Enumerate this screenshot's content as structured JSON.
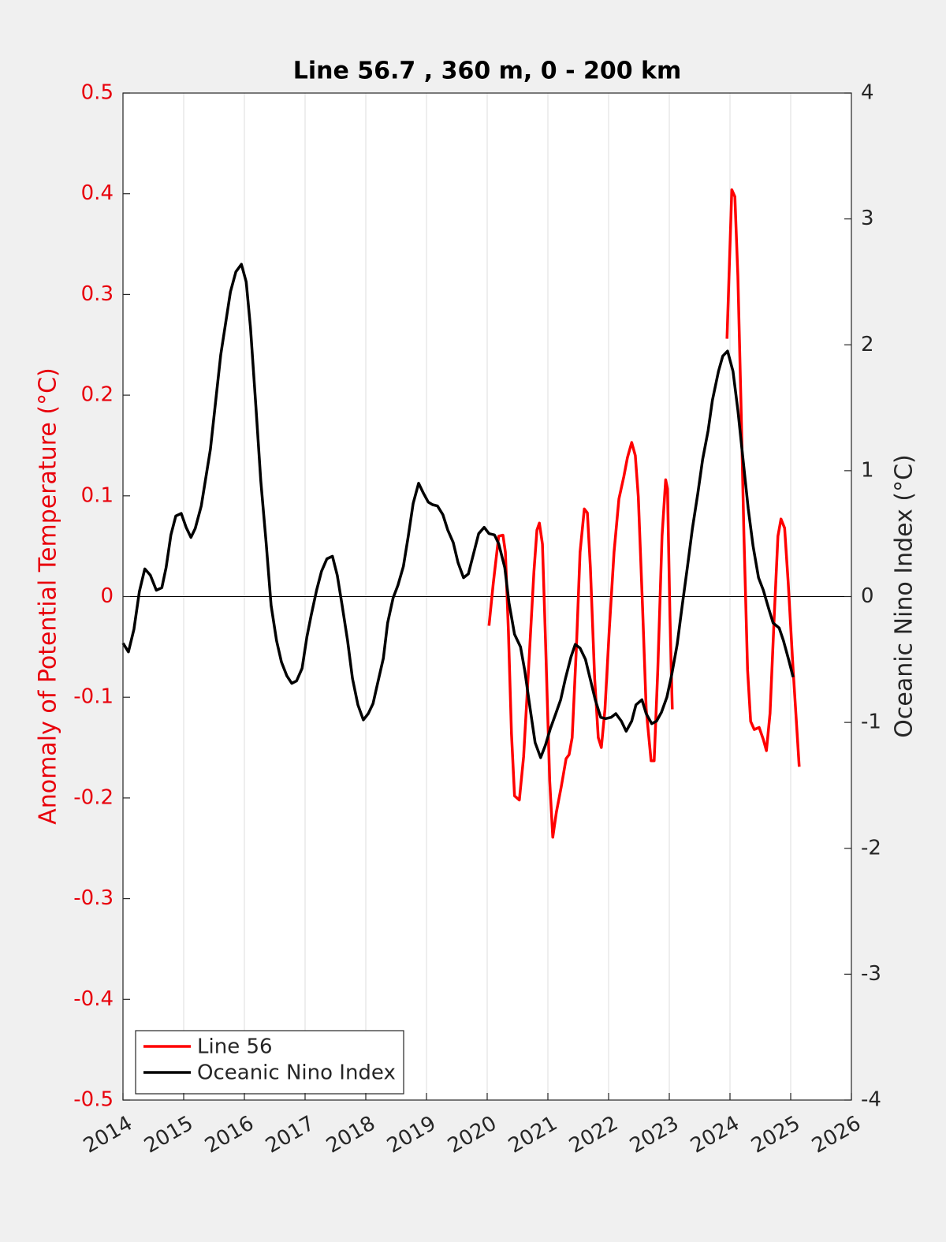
{
  "chart_data": {
    "type": "line",
    "title": "Line 56.7 , 360 m, 0 - 200 km",
    "y_label": "Anomaly of Potential Temperature (°C)",
    "y2_label": "Oceanic Nino Index (°C)",
    "xlim": [
      2014,
      2026
    ],
    "xticks": [
      2014,
      2015,
      2016,
      2017,
      2018,
      2019,
      2020,
      2021,
      2022,
      2023,
      2024,
      2025,
      2026
    ],
    "ylim": [
      -0.5,
      0.5
    ],
    "yticks": [
      -0.5,
      -0.4,
      -0.3,
      -0.2,
      -0.1,
      0,
      0.1,
      0.2,
      0.3,
      0.4,
      0.5
    ],
    "y2lim": [
      -4,
      4
    ],
    "y2ticks": [
      -4,
      -3,
      -2,
      -1,
      0,
      1,
      2,
      3,
      4
    ],
    "grid": "x",
    "legend": "lower left",
    "y_color": "#e8000b",
    "series": [
      {
        "name": "Line 56",
        "color": "#ff0000",
        "axis": "y",
        "x": [
          2020.03,
          2020.1,
          2020.19,
          2020.26,
          2020.3,
          2020.35,
          2020.4,
          2020.45,
          2020.53,
          2020.6,
          2020.68,
          2020.77,
          2020.82,
          2020.86,
          2020.91,
          2020.96,
          2021.03,
          2021.08,
          2021.14,
          2021.22,
          2021.3,
          2021.35,
          2021.4,
          2021.47,
          2021.53,
          2021.6,
          2021.65,
          2021.7,
          2021.77,
          2021.83,
          2021.88,
          2021.94,
          2022.01,
          2022.09,
          2022.17,
          2022.25,
          2022.31,
          2022.38,
          2022.44,
          2022.49,
          2022.56,
          2022.62,
          2022.7,
          2022.75,
          2022.81,
          2022.88,
          2022.94,
          2022.97,
          2023.01,
          2023.05,
          2023.5,
          2023.95,
          2024.03,
          2024.08,
          2024.13,
          2024.18,
          2024.23,
          2024.29,
          2024.34,
          2024.4,
          2024.48,
          2024.55,
          2024.6,
          2024.66,
          2024.73,
          2024.79,
          2024.84,
          2024.9,
          2024.96,
          2025.04,
          2025.14
        ],
        "values": [
          -0.029,
          0.013,
          0.06,
          0.061,
          0.044,
          -0.034,
          -0.136,
          -0.198,
          -0.202,
          -0.159,
          -0.073,
          0.025,
          0.066,
          0.073,
          0.052,
          -0.042,
          -0.183,
          -0.239,
          -0.214,
          -0.189,
          -0.161,
          -0.157,
          -0.14,
          -0.05,
          0.044,
          0.087,
          0.083,
          0.029,
          -0.081,
          -0.14,
          -0.15,
          -0.112,
          -0.034,
          0.044,
          0.097,
          0.119,
          0.138,
          0.153,
          0.14,
          0.099,
          -0.011,
          -0.112,
          -0.163,
          -0.163,
          -0.073,
          0.06,
          0.116,
          0.107,
          -0.018,
          -0.112,
          null,
          0.256,
          0.404,
          0.397,
          0.318,
          0.193,
          0.06,
          -0.073,
          -0.124,
          -0.132,
          -0.13,
          -0.142,
          -0.153,
          -0.116,
          -0.018,
          0.06,
          0.077,
          0.068,
          0.013,
          -0.073,
          -0.169
        ]
      },
      {
        "name": "Oceanic Nino Index",
        "color": "#000000",
        "axis": "y2",
        "x": [
          2014.0,
          2014.09,
          2014.18,
          2014.27,
          2014.36,
          2014.45,
          2014.55,
          2014.64,
          2014.71,
          2014.79,
          2014.87,
          2014.96,
          2015.04,
          2015.12,
          2015.19,
          2015.29,
          2015.44,
          2015.61,
          2015.77,
          2015.86,
          2015.95,
          2016.03,
          2016.1,
          2016.19,
          2016.27,
          2016.36,
          2016.44,
          2016.53,
          2016.61,
          2016.7,
          2016.78,
          2016.86,
          2016.95,
          2017.03,
          2017.1,
          2017.19,
          2017.27,
          2017.36,
          2017.45,
          2017.53,
          2017.61,
          2017.7,
          2017.78,
          2017.87,
          2017.96,
          2018.04,
          2018.12,
          2018.19,
          2018.29,
          2018.36,
          2018.45,
          2018.53,
          2018.62,
          2018.7,
          2018.78,
          2018.87,
          2018.95,
          2019.03,
          2019.1,
          2019.18,
          2019.27,
          2019.35,
          2019.44,
          2019.52,
          2019.61,
          2019.69,
          2019.78,
          2019.86,
          2019.95,
          2020.03,
          2020.12,
          2020.19,
          2020.29,
          2020.36,
          2020.45,
          2020.55,
          2020.62,
          2020.71,
          2020.79,
          2020.88,
          2020.96,
          2021.04,
          2021.13,
          2021.21,
          2021.29,
          2021.38,
          2021.45,
          2021.53,
          2021.62,
          2021.7,
          2021.78,
          2021.87,
          2021.95,
          2022.04,
          2022.12,
          2022.21,
          2022.29,
          2022.38,
          2022.45,
          2022.55,
          2022.62,
          2022.71,
          2022.79,
          2022.87,
          2022.96,
          2023.04,
          2023.13,
          2023.21,
          2023.3,
          2023.38,
          2023.47,
          2023.55,
          2023.64,
          2023.71,
          2023.81,
          2023.88,
          2023.96,
          2024.05,
          2024.13,
          2024.21,
          2024.3,
          2024.38,
          2024.47,
          2024.55,
          2024.64,
          2024.71,
          2024.81,
          2024.88,
          2024.96,
          2025.04
        ],
        "values": [
          -0.37,
          -0.44,
          -0.26,
          0.04,
          0.22,
          0.17,
          0.05,
          0.07,
          0.23,
          0.49,
          0.64,
          0.66,
          0.55,
          0.47,
          0.54,
          0.72,
          1.17,
          1.92,
          2.42,
          2.58,
          2.64,
          2.5,
          2.14,
          1.51,
          0.92,
          0.42,
          -0.07,
          -0.35,
          -0.52,
          -0.63,
          -0.69,
          -0.67,
          -0.57,
          -0.32,
          -0.15,
          0.05,
          0.2,
          0.3,
          0.32,
          0.17,
          -0.07,
          -0.35,
          -0.65,
          -0.86,
          -0.98,
          -0.93,
          -0.85,
          -0.7,
          -0.49,
          -0.21,
          -0.01,
          0.09,
          0.24,
          0.48,
          0.74,
          0.9,
          0.82,
          0.75,
          0.73,
          0.72,
          0.65,
          0.53,
          0.43,
          0.27,
          0.15,
          0.18,
          0.35,
          0.5,
          0.55,
          0.5,
          0.49,
          0.42,
          0.23,
          -0.05,
          -0.3,
          -0.4,
          -0.59,
          -0.9,
          -1.16,
          -1.28,
          -1.18,
          -1.05,
          -0.93,
          -0.82,
          -0.65,
          -0.48,
          -0.38,
          -0.41,
          -0.5,
          -0.66,
          -0.82,
          -0.96,
          -0.97,
          -0.96,
          -0.93,
          -0.99,
          -1.07,
          -0.99,
          -0.86,
          -0.82,
          -0.93,
          -1.01,
          -0.99,
          -0.92,
          -0.8,
          -0.62,
          -0.38,
          -0.08,
          0.24,
          0.54,
          0.82,
          1.09,
          1.32,
          1.56,
          1.79,
          1.91,
          1.95,
          1.79,
          1.48,
          1.11,
          0.7,
          0.4,
          0.15,
          0.05,
          -0.1,
          -0.21,
          -0.25,
          -0.35,
          -0.49,
          -0.64
        ]
      }
    ]
  }
}
